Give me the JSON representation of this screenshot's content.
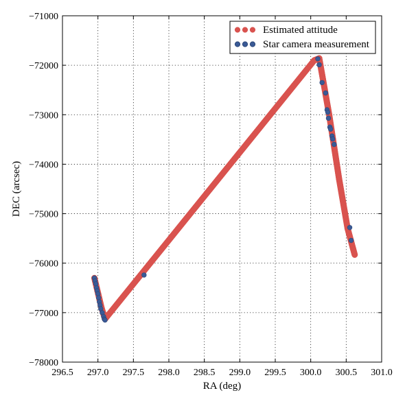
{
  "chart_data": {
    "type": "scatter",
    "title": "",
    "xlabel": "RA (deg)",
    "ylabel": "DEC (arcsec)",
    "xlim": [
      296.5,
      301.0
    ],
    "ylim": [
      -78000,
      -71000
    ],
    "x_ticks": [
      296.5,
      297.0,
      297.5,
      298.0,
      298.5,
      299.0,
      299.5,
      300.0,
      300.5,
      301.0
    ],
    "y_ticks": [
      -78000,
      -77000,
      -76000,
      -75000,
      -74000,
      -73000,
      -72000,
      -71000
    ],
    "x_tick_labels": [
      "296.5",
      "297.0",
      "297.5",
      "298.0",
      "298.5",
      "299.0",
      "299.5",
      "300.0",
      "300.5",
      "301.0"
    ],
    "y_tick_labels": [
      "−78000",
      "−77000",
      "−76000",
      "−75000",
      "−74000",
      "−73000",
      "−72000",
      "−71000"
    ],
    "grid": true,
    "legend_position": "top-right",
    "series": [
      {
        "name": "Estimated attitude",
        "color": "#d9534f",
        "kind": "dense-track",
        "points": [
          [
            296.95,
            -76300
          ],
          [
            297.05,
            -76900
          ],
          [
            297.1,
            -77130
          ],
          [
            300.05,
            -71900
          ],
          [
            300.12,
            -71860
          ],
          [
            300.26,
            -73000
          ],
          [
            300.4,
            -74300
          ],
          [
            300.52,
            -75300
          ],
          [
            300.62,
            -75830
          ]
        ]
      },
      {
        "name": "Star camera measurement",
        "color": "#3a5a96",
        "kind": "points",
        "points": [
          [
            296.95,
            -76300
          ],
          [
            296.96,
            -76360
          ],
          [
            296.97,
            -76420
          ],
          [
            296.98,
            -76500
          ],
          [
            296.99,
            -76560
          ],
          [
            297.0,
            -76620
          ],
          [
            297.01,
            -76700
          ],
          [
            297.02,
            -76780
          ],
          [
            297.03,
            -76850
          ],
          [
            297.04,
            -76920
          ],
          [
            297.06,
            -77000
          ],
          [
            297.08,
            -77080
          ],
          [
            297.09,
            -77130
          ],
          [
            297.1,
            -77150
          ],
          [
            297.65,
            -76240
          ],
          [
            300.1,
            -71870
          ],
          [
            300.12,
            -71990
          ],
          [
            300.16,
            -72350
          ],
          [
            300.21,
            -72560
          ],
          [
            300.23,
            -72900
          ],
          [
            300.24,
            -72950
          ],
          [
            300.25,
            -73070
          ],
          [
            300.27,
            -73250
          ],
          [
            300.28,
            -73290
          ],
          [
            300.3,
            -73430
          ],
          [
            300.31,
            -73490
          ],
          [
            300.33,
            -73600
          ],
          [
            300.55,
            -75280
          ],
          [
            300.57,
            -75540
          ]
        ]
      }
    ]
  }
}
